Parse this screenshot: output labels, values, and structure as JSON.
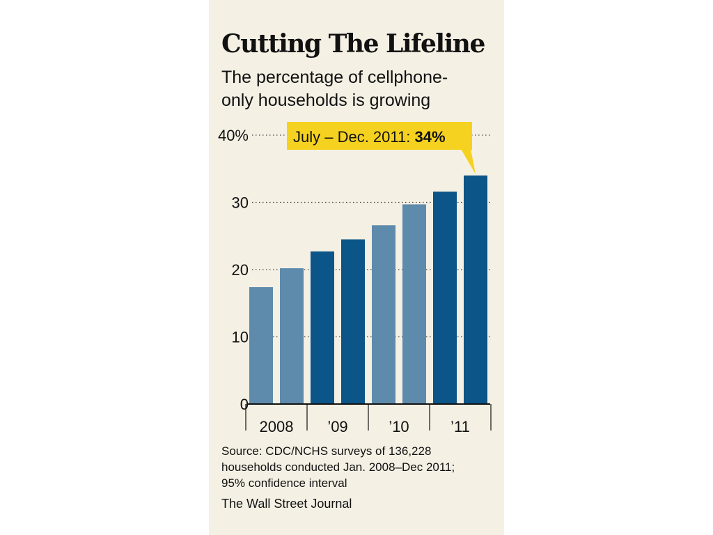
{
  "title": "Cutting The Lifeline",
  "subtitle": "The percentage of cellphone-\nonly households is growing",
  "callout": {
    "text": "July – Dec. 2011: ",
    "value": "34%",
    "color": "#f5d220"
  },
  "source": "Source: CDC/NCHS surveys of 136,228\nhouseholds conducted Jan. 2008–Dec 2011;\n95% confidence interval",
  "credit": "The Wall Street Journal",
  "colors": {
    "light": "#5e8aab",
    "dark": "#0b5588",
    "background": "#f5f0e4"
  },
  "chart_data": {
    "type": "bar",
    "categories": [
      "Jan–Jun 2008",
      "Jul–Dec 2008",
      "Jan–Jun 2009",
      "Jul–Dec 2009",
      "Jan–Jun 2010",
      "Jul–Dec 2010",
      "Jan–Jun 2011",
      "Jul–Dec 2011"
    ],
    "values": [
      17.4,
      20.2,
      22.7,
      24.5,
      26.6,
      29.7,
      31.6,
      34.0
    ],
    "year_labels": [
      "2008",
      "’09",
      "’10",
      "’11"
    ],
    "ylim": [
      0,
      40
    ],
    "yticks": [
      0,
      10,
      20,
      30,
      40
    ],
    "ytick_labels": [
      "0",
      "10",
      "20",
      "30",
      "40%"
    ],
    "grid": "dotted",
    "bar_color_pattern": [
      "light",
      "light",
      "dark",
      "dark",
      "light",
      "light",
      "dark",
      "dark"
    ]
  }
}
